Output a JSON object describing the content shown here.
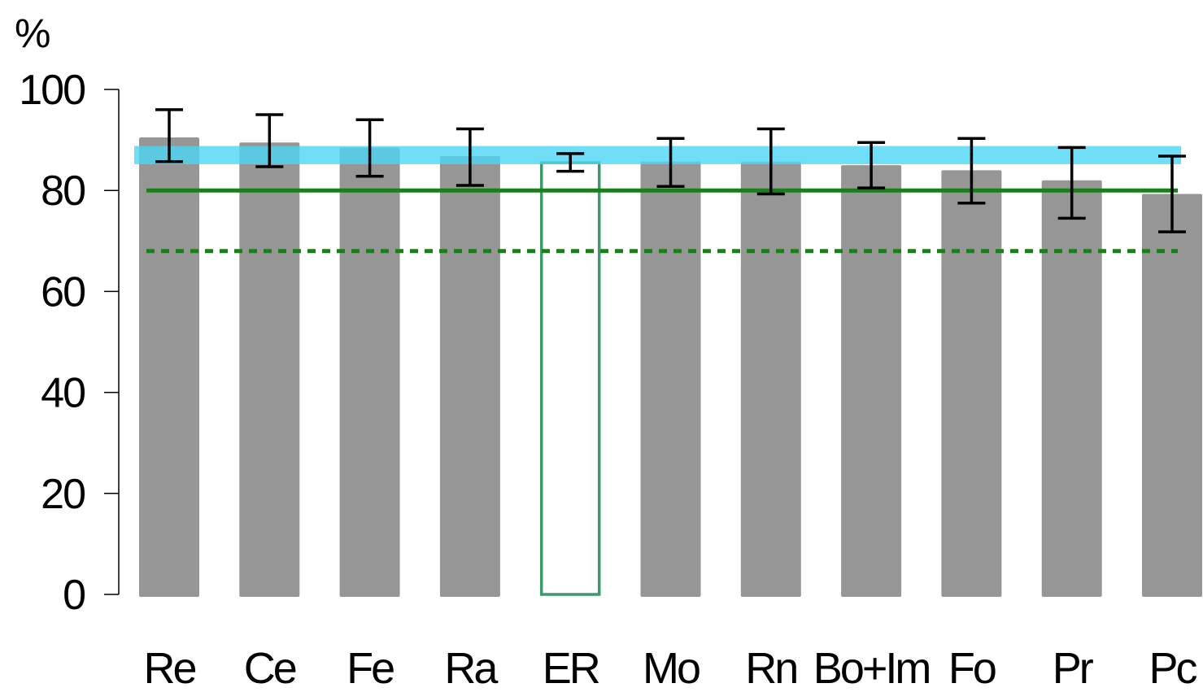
{
  "chart_data": {
    "type": "bar",
    "ylabel": "%",
    "ylim": [
      0,
      100
    ],
    "yticks": [
      0,
      20,
      40,
      60,
      80,
      100
    ],
    "grid": false,
    "categories": [
      "Re",
      "Ce",
      "Fe",
      "Ra",
      "ER",
      "Mo",
      "Rn",
      "Bo+Im",
      "Fo",
      "Pr",
      "Pc"
    ],
    "values": [
      90.5,
      89.5,
      88.5,
      86.8,
      85.5,
      85.7,
      85.7,
      85.0,
      84.0,
      82.0,
      79.3
    ],
    "error_low": [
      85.7,
      84.7,
      82.8,
      81.0,
      83.8,
      80.8,
      79.3,
      80.5,
      77.5,
      74.5,
      71.8
    ],
    "error_high": [
      96.0,
      95.0,
      94.0,
      92.2,
      87.3,
      90.3,
      92.2,
      89.5,
      90.3,
      88.5,
      86.8
    ],
    "highlighted_category": "ER",
    "reference_lines": [
      {
        "style": "solid",
        "value": 80,
        "color": "#1a7f1a"
      },
      {
        "style": "dotted",
        "value": 68,
        "color": "#1a7f1a"
      }
    ],
    "reference_band": {
      "low": 85.2,
      "high": 88.8,
      "color": "#4dd6f5"
    },
    "colors": {
      "bar": "#969696",
      "highlight_outline": "#3a9a6a",
      "error_bar": "#000000",
      "axis": "#000000"
    }
  }
}
